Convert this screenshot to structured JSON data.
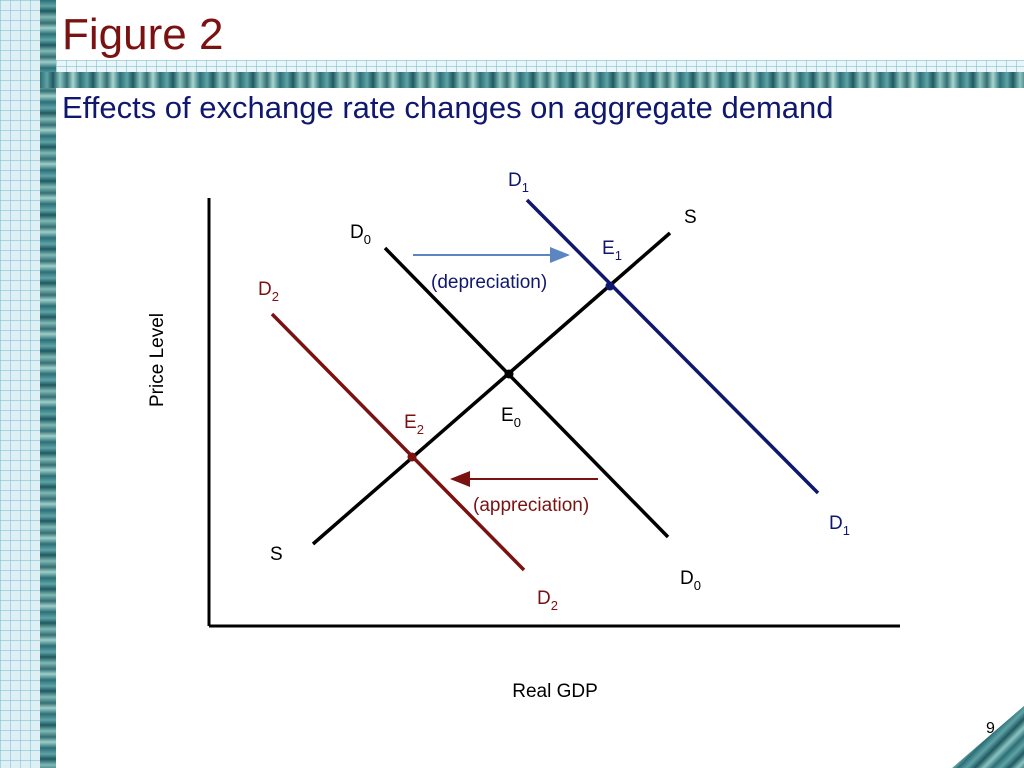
{
  "slide": {
    "title": "Figure 2",
    "subtitle": "Effects of exchange rate changes on aggregate demand",
    "page_number": "9"
  },
  "axes": {
    "x_label": "Real GDP",
    "y_label": "Price Level"
  },
  "curves": {
    "supply": {
      "name": "S",
      "color": "#000000"
    },
    "d0": {
      "base": "D",
      "sub": "0",
      "color": "#000000"
    },
    "d1": {
      "base": "D",
      "sub": "1",
      "color": "#10186e"
    },
    "d2": {
      "base": "D",
      "sub": "2",
      "color": "#7a1212"
    }
  },
  "equilibria": {
    "e0": {
      "base": "E",
      "sub": "0"
    },
    "e1": {
      "base": "E",
      "sub": "1"
    },
    "e2": {
      "base": "E",
      "sub": "2"
    }
  },
  "shifts": {
    "depreciation": "(depreciation)",
    "appreciation": "(appreciation)"
  },
  "colors": {
    "title": "#7a1212",
    "subtitle": "#10186e",
    "arrow_right": "#5b86c2",
    "arrow_left": "#7a1212"
  }
}
